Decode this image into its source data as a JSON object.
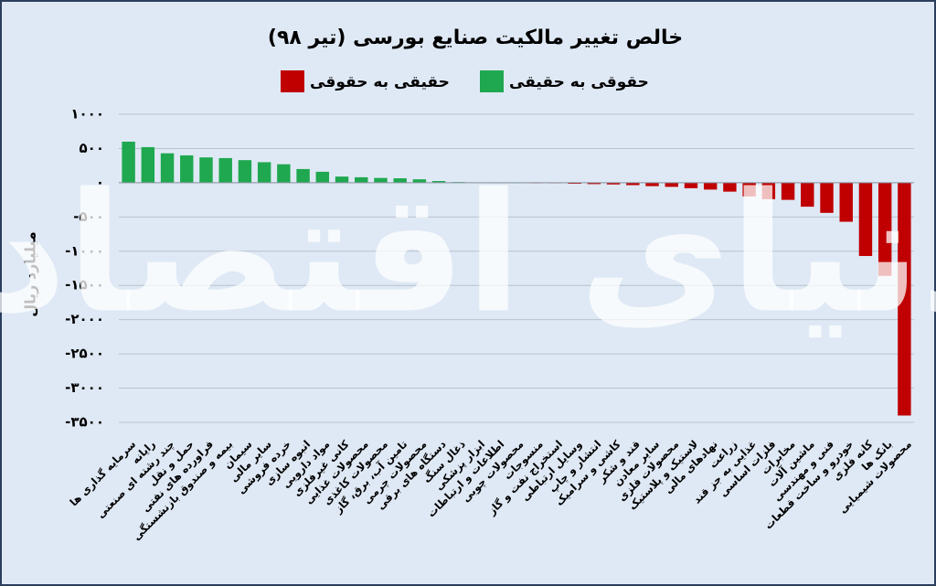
{
  "chart_data": {
    "type": "bar",
    "title": "خالص تغییر مالکیت صنایع بورسی (تیر ۹۸)",
    "y_label": "میلیارد ریال",
    "watermark": "دنیای اقتصاد",
    "categories": [
      "سرمایه گذاری ها",
      "رایانه",
      "چند رشته ای صنعتی",
      "حمل و نقل",
      "فراورده های نفتی",
      "بیمه و صندوق بازنشستگی",
      "سیمان",
      "سایر مالی",
      "خرده فروشی",
      "انبوه سازی",
      "مواد دارویی",
      "کانی غیرفلزی",
      "محصولات غذایی",
      "محصولات کاغذی",
      "تامین آب، برق، گاز",
      "محصولات چرمی",
      "دستگاه های برقی",
      "ذغال سنگ",
      "ابزار پزشکی",
      "اطلاعات و ارتباطات",
      "محصولات چوبی",
      "منسوجات",
      "استخراج نفت و گاز",
      "وسایل ارتباطی",
      "انتشار و چاپ",
      "کاشی و سرامیک",
      "قند و شکر",
      "سایر معادن",
      "محصولات فلزی",
      "لاستیک و پلاستیک",
      "نهادهای مالی",
      "زراعت",
      "غذایی به جز قند",
      "فلزات اساسی",
      "مخابرات",
      "ماشین آلات",
      "فنی و مهندسی",
      "خودرو و ساخت قطعات",
      "کانه فلزی",
      "بانک ها",
      "محصولات شیمیایی"
    ],
    "series": [
      {
        "name": "حقوقی به حقیقی",
        "color": "#1fa84f",
        "values": [
          600,
          520,
          430,
          400,
          370,
          360,
          330,
          300,
          270,
          200,
          160,
          90,
          80,
          70,
          65,
          50,
          25,
          10,
          5,
          3,
          2,
          null,
          null,
          null,
          null,
          null,
          null,
          null,
          null,
          null,
          null,
          null,
          null,
          null,
          null,
          null,
          null,
          null,
          null,
          null,
          null
        ]
      },
      {
        "name": "حقیقی به حقوقی",
        "color": "#c00000",
        "values": [
          null,
          null,
          null,
          null,
          null,
          null,
          null,
          null,
          null,
          null,
          null,
          null,
          null,
          null,
          null,
          null,
          null,
          null,
          null,
          null,
          null,
          -1,
          -3,
          -15,
          -20,
          -25,
          -35,
          -50,
          -60,
          -80,
          -100,
          -130,
          -200,
          -240,
          -250,
          -350,
          -440,
          -570,
          -1070,
          -1360,
          -3400
        ]
      }
    ],
    "ylim": [
      -3500,
      1000
    ],
    "yticks": [
      {
        "value": 1000,
        "label": "۱۰۰۰"
      },
      {
        "value": 500,
        "label": "۵۰۰"
      },
      {
        "value": 0,
        "label": "۰"
      },
      {
        "value": -500,
        "label": "-۵۰۰"
      },
      {
        "value": -1000,
        "label": "-۱۰۰۰"
      },
      {
        "value": -1500,
        "label": "-۱۵۰۰"
      },
      {
        "value": -2000,
        "label": "-۲۰۰۰"
      },
      {
        "value": -2500,
        "label": "-۲۵۰۰"
      },
      {
        "value": -3000,
        "label": "-۳۰۰۰"
      },
      {
        "value": -3500,
        "label": "-۳۵۰۰"
      }
    ],
    "grid": true
  }
}
